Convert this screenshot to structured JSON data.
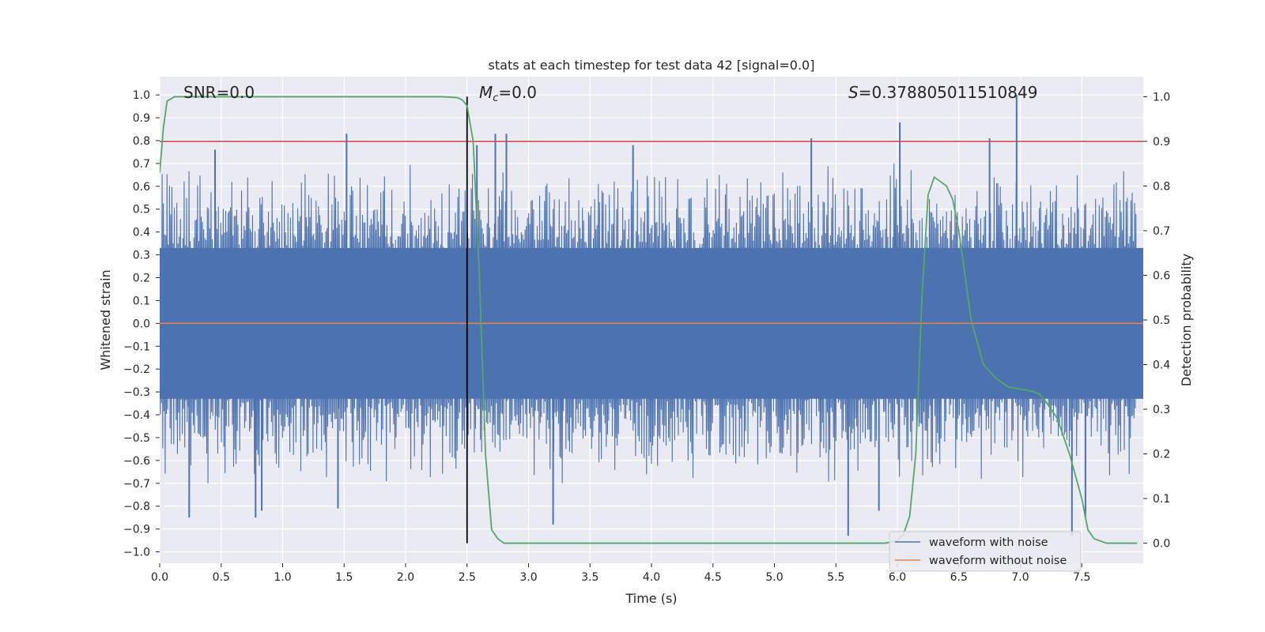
{
  "chart_data": {
    "type": "line",
    "title": "stats at each timestep for test data 42 [signal=0.0]",
    "xlabel": "Time (s)",
    "ylabel": "Whitened strain",
    "y2label": "Detection probability",
    "xlim": [
      0.0,
      8.0
    ],
    "ylim": [
      -1.05,
      1.08
    ],
    "y2lim": [
      -0.045,
      1.045
    ],
    "x_ticks": [
      "0.0",
      "0.5",
      "1.0",
      "1.5",
      "2.0",
      "2.5",
      "3.0",
      "3.5",
      "4.0",
      "4.5",
      "5.0",
      "5.5",
      "6.0",
      "6.5",
      "7.0",
      "7.5"
    ],
    "y_ticks": [
      "1.0",
      "0.9",
      "0.8",
      "0.7",
      "0.6",
      "0.5",
      "0.4",
      "0.3",
      "0.2",
      "0.1",
      "0.0",
      "−0.1",
      "−0.2",
      "−0.3",
      "−0.4",
      "−0.5",
      "−0.6",
      "−0.7",
      "−0.8",
      "−0.9",
      "−1.0"
    ],
    "y2_ticks": [
      "1.0",
      "0.9",
      "0.8",
      "0.7",
      "0.6",
      "0.5",
      "0.4",
      "0.3",
      "0.2",
      "0.1",
      "0.0"
    ],
    "annotations": {
      "snr": "SNR=0.0",
      "mc_symbol": "M",
      "mc_sub": "c",
      "mc_value": "=0.0",
      "s_symbol": "S",
      "s_value": "=0.378805011510849"
    },
    "threshold": {
      "value_y2": 0.9,
      "color": "#c44e52"
    },
    "vertical_marker": {
      "x": 2.5,
      "y2_range": [
        0.0,
        1.0
      ],
      "color": "#000000"
    },
    "series": [
      {
        "name": "waveform with noise",
        "color": "#4c72b0",
        "axis": "left",
        "envelope_note": "dense noise waveform, rendered as spikes",
        "spikes": [
          [
            0.45,
            0.76
          ],
          [
            1.52,
            0.83
          ],
          [
            2.58,
            0.78
          ],
          [
            2.73,
            0.83
          ],
          [
            2.82,
            0.83
          ],
          [
            3.85,
            0.78
          ],
          [
            5.3,
            0.81
          ],
          [
            6.02,
            0.88
          ],
          [
            6.75,
            0.81
          ],
          [
            6.97,
            1.0
          ],
          [
            0.24,
            -0.85
          ],
          [
            0.78,
            -0.85
          ],
          [
            0.83,
            -0.82
          ],
          [
            1.45,
            -0.81
          ],
          [
            3.2,
            -0.88
          ],
          [
            5.6,
            -0.93
          ],
          [
            5.85,
            -0.82
          ],
          [
            7.42,
            -0.93
          ],
          [
            7.53,
            -0.85
          ]
        ]
      },
      {
        "name": "waveform without noise",
        "color": "#dd8452",
        "axis": "left",
        "x": [
          0,
          8
        ],
        "y": [
          0.0,
          0.0
        ]
      },
      {
        "name": "detection probability",
        "color": "#55a868",
        "axis": "right",
        "x": [
          0.0,
          0.03,
          0.06,
          0.12,
          0.5,
          1.0,
          1.5,
          2.0,
          2.3,
          2.42,
          2.46,
          2.5,
          2.55,
          2.6,
          2.65,
          2.7,
          2.75,
          2.8,
          3.0,
          4.0,
          5.0,
          5.9,
          6.0,
          6.05,
          6.1,
          6.15,
          6.2,
          6.25,
          6.3,
          6.35,
          6.4,
          6.45,
          6.5,
          6.55,
          6.6,
          6.7,
          6.8,
          6.9,
          7.0,
          7.1,
          7.15,
          7.2,
          7.3,
          7.4,
          7.5,
          7.55,
          7.6,
          7.7,
          7.8,
          7.95
        ],
        "y": [
          0.83,
          0.93,
          0.99,
          1.0,
          1.0,
          1.0,
          1.0,
          1.0,
          1.0,
          0.998,
          0.993,
          0.98,
          0.9,
          0.6,
          0.2,
          0.03,
          0.01,
          0.0,
          0.0,
          0.0,
          0.0,
          0.0,
          0.005,
          0.02,
          0.06,
          0.2,
          0.55,
          0.78,
          0.82,
          0.81,
          0.8,
          0.77,
          0.7,
          0.6,
          0.5,
          0.4,
          0.37,
          0.35,
          0.345,
          0.34,
          0.335,
          0.32,
          0.28,
          0.2,
          0.1,
          0.03,
          0.01,
          0.0,
          0.0,
          0.0
        ]
      }
    ],
    "legend": {
      "position": "lower-right",
      "entries": [
        {
          "label": "waveform with noise",
          "color": "#4c72b0"
        },
        {
          "label": "waveform without noise",
          "color": "#dd8452"
        }
      ]
    },
    "grid": true
  }
}
